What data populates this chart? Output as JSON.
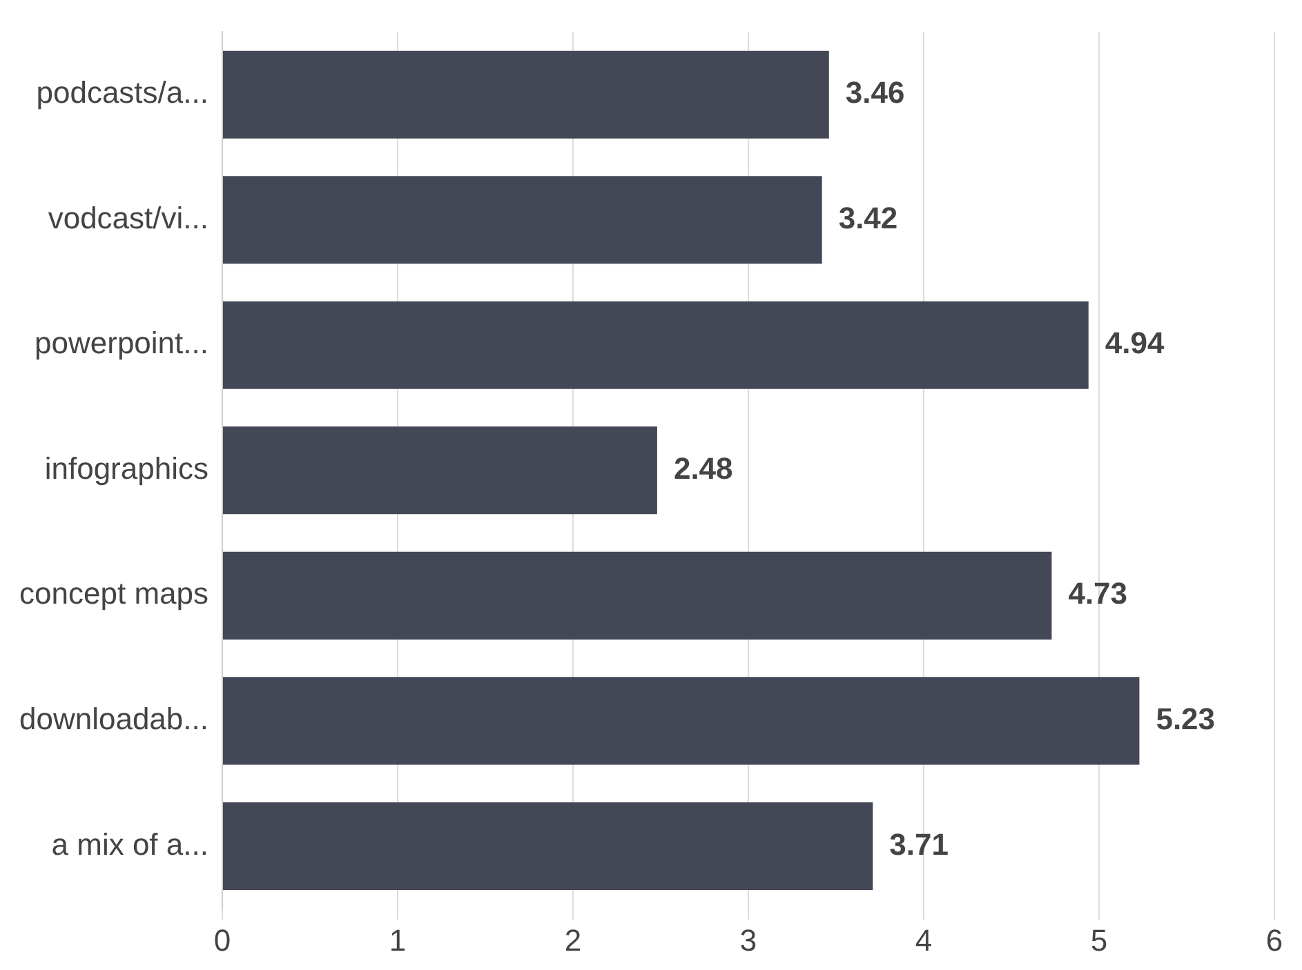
{
  "chart_data": {
    "type": "bar",
    "orientation": "horizontal",
    "categories": [
      "podcasts/a...",
      "vodcast/vi...",
      "powerpoint...",
      "infographics",
      "concept maps",
      "downloadab...",
      "a mix of a..."
    ],
    "values": [
      3.46,
      3.42,
      4.94,
      2.48,
      4.73,
      5.23,
      3.71
    ],
    "color": "#434756",
    "xlim": [
      0,
      6
    ],
    "xticks": [
      0,
      1,
      2,
      3,
      4,
      5,
      6
    ],
    "grid": "x",
    "data_labels": true,
    "legend": false
  }
}
